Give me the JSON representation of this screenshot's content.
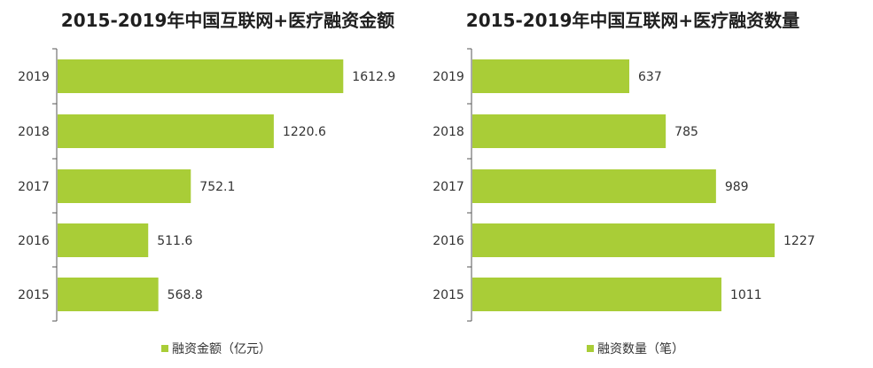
{
  "colors": {
    "bar": "#a9cd37",
    "axis": "#555555",
    "text": "#333333",
    "title": "#1f1f1f"
  },
  "chart_data": [
    {
      "type": "bar",
      "orientation": "horizontal",
      "title": "2015-2019年中国互联网+医疗融资金额",
      "categories": [
        "2019",
        "2018",
        "2017",
        "2016",
        "2015"
      ],
      "series": [
        {
          "name": "融资金额（亿元）",
          "values": [
            1612.9,
            1220.6,
            752.1,
            511.6,
            568.8
          ],
          "labels": [
            "1612.9",
            "1220.6",
            "752.1",
            "511.6",
            "568.8"
          ]
        }
      ],
      "xlim": [
        0,
        1800
      ],
      "grid": false,
      "legend": "bottom",
      "legend_text": "融资金额（亿元）"
    },
    {
      "type": "bar",
      "orientation": "horizontal",
      "title": "2015-2019年中国互联网+医疗融资数量",
      "categories": [
        "2019",
        "2018",
        "2017",
        "2016",
        "2015"
      ],
      "series": [
        {
          "name": "融资数量（笔）",
          "values": [
            637,
            785,
            989,
            1227,
            1011
          ],
          "labels": [
            "637",
            "785",
            "989",
            "1227",
            "1011"
          ]
        }
      ],
      "xlim": [
        0,
        1400
      ],
      "grid": false,
      "legend": "bottom",
      "legend_text": "融资数量（笔）"
    }
  ]
}
